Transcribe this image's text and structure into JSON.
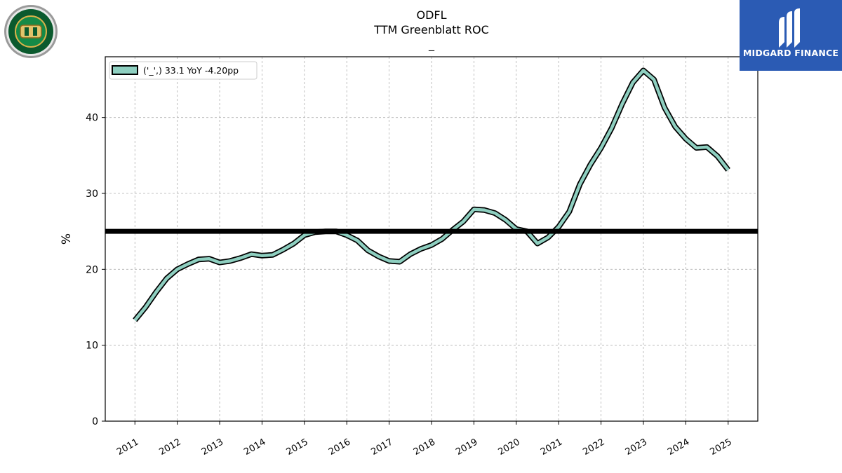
{
  "chart_data": {
    "type": "line",
    "title_lines": [
      "ODFL",
      "TTM Greenblatt ROC",
      "_"
    ],
    "ylabel": "%",
    "xlabel": "",
    "ylim": [
      0,
      48
    ],
    "yticks": [
      0,
      10,
      20,
      30,
      40
    ],
    "xticks": [
      "2011",
      "2012",
      "2013",
      "2014",
      "2015",
      "2016",
      "2017",
      "2018",
      "2019",
      "2020",
      "2021",
      "2022",
      "2023",
      "2024",
      "2025"
    ],
    "xlim": [
      2010.3,
      2025.7
    ],
    "grid": true,
    "legend_position": "top-left",
    "reference_line": 25,
    "series": [
      {
        "name": "('_',) 33.1 YoY -4.20pp",
        "color": "#8ecfc0",
        "x": [
          2011.0,
          2011.25,
          2011.5,
          2011.75,
          2012.0,
          2012.25,
          2012.5,
          2012.75,
          2013.0,
          2013.25,
          2013.5,
          2013.75,
          2014.0,
          2014.25,
          2014.5,
          2014.75,
          2015.0,
          2015.25,
          2015.5,
          2015.75,
          2016.0,
          2016.25,
          2016.5,
          2016.75,
          2017.0,
          2017.25,
          2017.5,
          2017.75,
          2018.0,
          2018.25,
          2018.5,
          2018.75,
          2019.0,
          2019.25,
          2019.5,
          2019.75,
          2020.0,
          2020.25,
          2020.5,
          2020.75,
          2021.0,
          2021.25,
          2021.5,
          2021.75,
          2022.0,
          2022.25,
          2022.5,
          2022.75,
          2023.0,
          2023.25,
          2023.5,
          2023.75,
          2024.0,
          2024.25,
          2024.5,
          2024.75,
          2025.0
        ],
        "values": [
          13.3,
          15.0,
          17.0,
          18.8,
          20.0,
          20.7,
          21.3,
          21.4,
          20.9,
          21.1,
          21.5,
          22.0,
          21.8,
          21.9,
          22.6,
          23.4,
          24.5,
          24.9,
          25.0,
          25.0,
          24.5,
          23.8,
          22.5,
          21.7,
          21.1,
          21.0,
          22.0,
          22.7,
          23.2,
          24.0,
          25.2,
          26.3,
          27.9,
          27.8,
          27.4,
          26.5,
          25.3,
          25.0,
          23.4,
          24.2,
          25.6,
          27.6,
          31.2,
          33.8,
          36.0,
          38.6,
          41.8,
          44.6,
          46.2,
          45.0,
          41.3,
          38.8,
          37.2,
          36.0,
          36.1,
          34.9,
          33.1
        ]
      }
    ]
  },
  "brand": {
    "name": "MIDGARD FINANCE",
    "color": "#2b5bb4"
  }
}
